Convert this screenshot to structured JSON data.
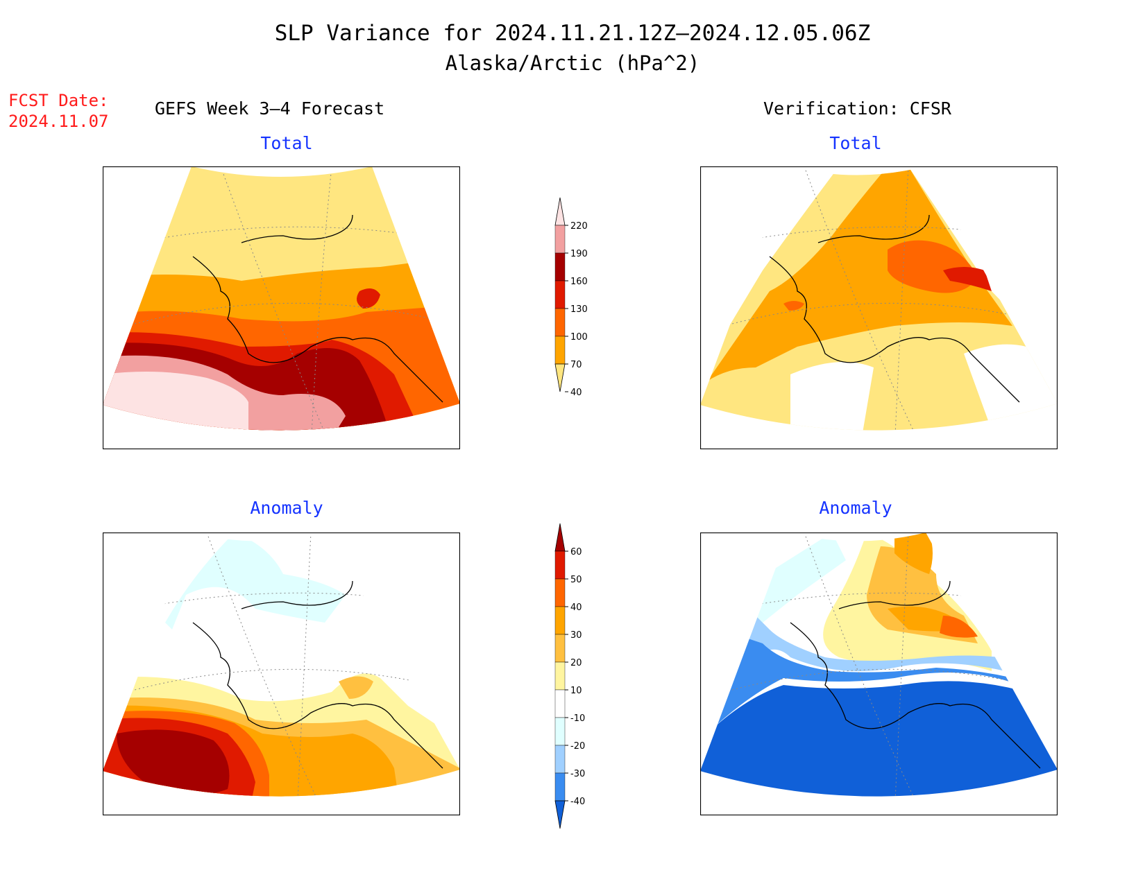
{
  "title": "SLP Variance for 2024.11.21.12Z–2024.12.05.06Z",
  "subtitle": "Alaska/Arctic (hPa^2)",
  "fcst": {
    "label": "FCST Date:",
    "date": "2024.11.07"
  },
  "left_header": "GEFS Week 3–4 Forecast",
  "right_header": "Verification: CFSR",
  "panels": {
    "tl": "Total",
    "tr": "Total",
    "bl": "Anomaly",
    "br": "Anomaly"
  },
  "colorbar_total": {
    "ticks": [
      "220",
      "190",
      "160",
      "130",
      "100",
      "70",
      "40"
    ],
    "colors": [
      "#fde3e3",
      "#f2a0a0",
      "#a50000",
      "#e01a00",
      "#ff6600",
      "#ffa500",
      "#ffe680"
    ]
  },
  "colorbar_anomaly": {
    "ticks": [
      "60",
      "50",
      "40",
      "30",
      "20",
      "10",
      "-10",
      "-20",
      "-30",
      "-40"
    ],
    "colors": [
      "#a50000",
      "#e01a00",
      "#ff6600",
      "#ffa500",
      "#ffc040",
      "#fff5a0",
      "#ffffff",
      "#e0ffff",
      "#a0d0ff",
      "#3a8cf0",
      "#1060d8"
    ]
  }
}
